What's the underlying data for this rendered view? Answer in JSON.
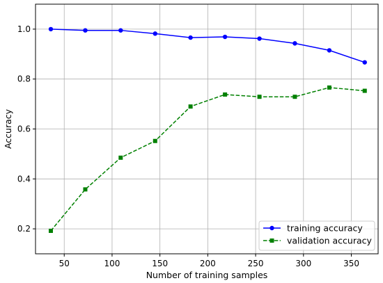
{
  "chart_data": {
    "type": "line",
    "xlabel": "Number of training samples",
    "ylabel": "Accuracy",
    "xlim": [
      20,
      378
    ],
    "ylim": [
      0.1,
      1.1
    ],
    "x_ticks": [
      50,
      100,
      150,
      200,
      250,
      300,
      350
    ],
    "y_ticks": [
      0.2,
      0.4,
      0.6,
      0.8,
      1.0
    ],
    "x_tick_labels": [
      "50",
      "100",
      "150",
      "200",
      "250",
      "300",
      "350"
    ],
    "y_tick_labels": [
      "0.2",
      "0.4",
      "0.6",
      "0.8",
      "1.0"
    ],
    "grid": true,
    "legend_position": "lower-right",
    "x": [
      36,
      72,
      109,
      145,
      182,
      218,
      254,
      291,
      327,
      364
    ],
    "series": [
      {
        "name": "training accuracy",
        "color": "#0000ff",
        "line_style": "solid",
        "marker": "circle",
        "values": [
          1.0,
          0.995,
          0.995,
          0.982,
          0.966,
          0.969,
          0.962,
          0.943,
          0.915,
          0.867
        ]
      },
      {
        "name": "validation accuracy",
        "color": "#008000",
        "line_style": "dashed",
        "marker": "square",
        "values": [
          0.192,
          0.358,
          0.485,
          0.552,
          0.69,
          0.738,
          0.729,
          0.729,
          0.766,
          0.753
        ]
      }
    ]
  }
}
